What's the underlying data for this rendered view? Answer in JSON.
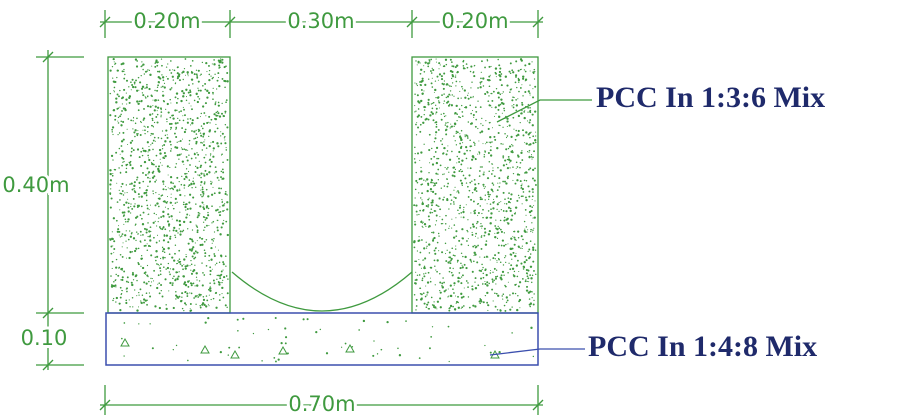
{
  "dimensions": {
    "top": [
      "0.20m",
      "0.30m",
      "0.20m"
    ],
    "height": "0.40m",
    "base_thickness": "0.10",
    "width": "0.70m"
  },
  "labels": [
    "PCC In 1:3:6 Mix",
    "PCC In 1:4:8 Mix"
  ]
}
